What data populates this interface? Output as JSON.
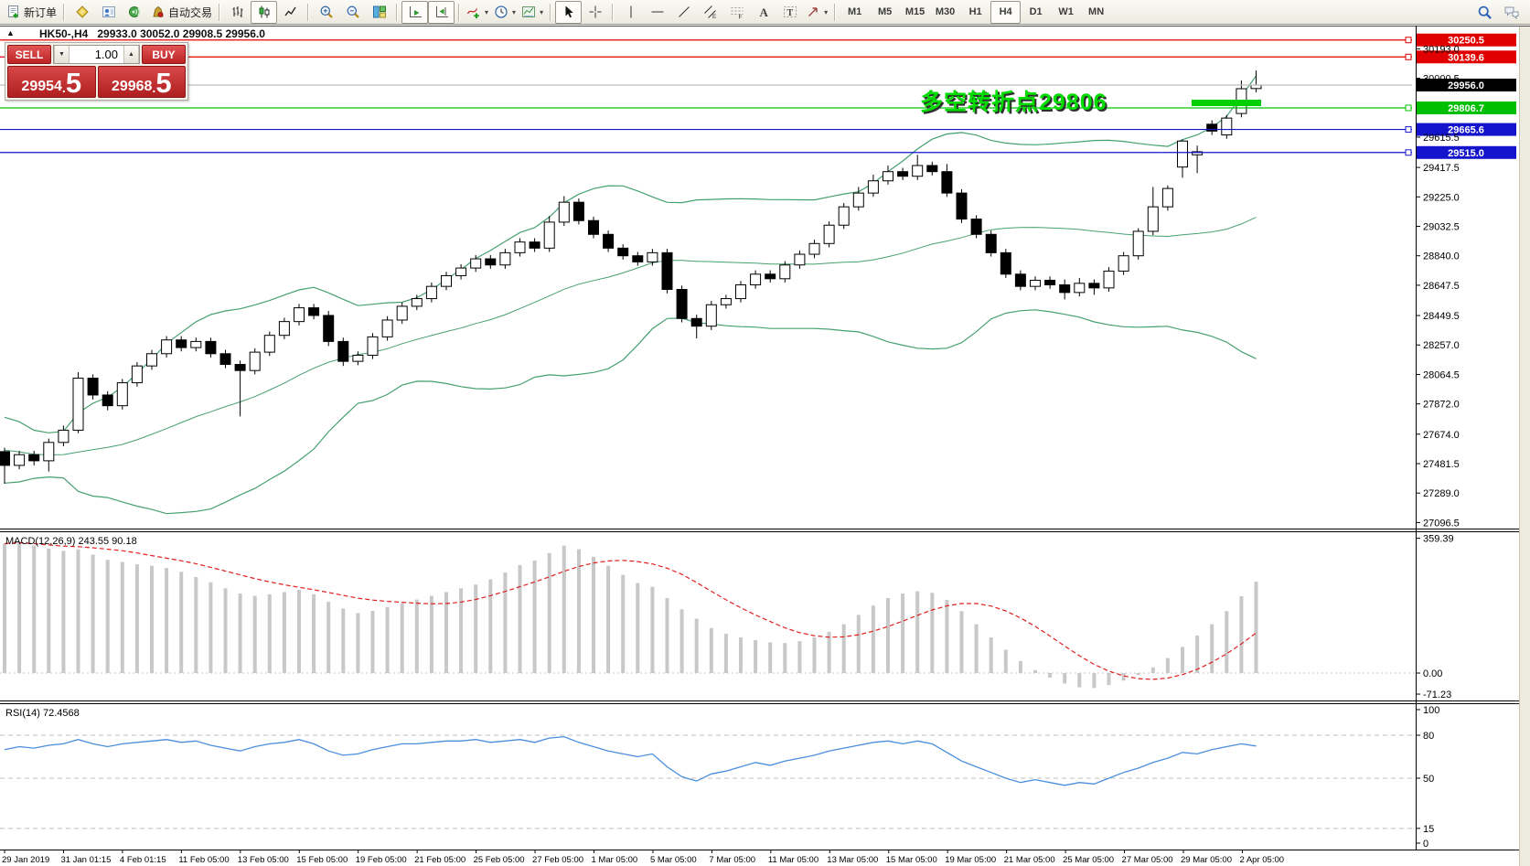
{
  "toolbar": {
    "new_order_label": "新订单",
    "auto_trading_label": "自动交易",
    "timeframes": [
      "M1",
      "M5",
      "M15",
      "M30",
      "H1",
      "H4",
      "D1",
      "W1",
      "MN"
    ],
    "active_timeframe": "H4",
    "icons": {
      "new-order-icon": "document with green plus",
      "profiles-icon": "yellow gem",
      "market-watch-icon": "window with blue person",
      "news-icon": "green orb with waves",
      "auto-trading-icon": "gold pouch with red dot",
      "ohlc-bars-icon": "bar chart",
      "candlestick-icon": "candlesticks (selected)",
      "line-chart-icon": "zigzag line",
      "zoom-in-icon": "magnifier plus",
      "zoom-out-icon": "magnifier minus",
      "tile-windows-icon": "colored tiles",
      "auto-scroll-icon": "axis with green play",
      "chart-shift-icon": "axis with green arrow and bar",
      "indicators-icon": "curve with green plus",
      "periods-icon": "clock",
      "templates-icon": "mini colored chart",
      "cursor-icon": "pointer arrow (selected)",
      "crosshair-icon": "crosshair",
      "vertical-line-icon": "vertical line",
      "horizontal-line-icon": "horizontal line",
      "trendline-icon": "diagonal line",
      "channel-icon": "equidistant channel E",
      "fibonacci-icon": "dashed levels F",
      "text-icon": "letter A",
      "text-label-icon": "boxed T",
      "arrows-icon": "arrow object",
      "search-icon": "blue magnifier",
      "chat-icon": "speech bubbles"
    }
  },
  "chart": {
    "symbol_period": "HK50-,H4",
    "ohlc_text": "29933.0 30052.0 29908.5 29956.0",
    "collapse_glyph": "▲"
  },
  "trade_panel": {
    "sell_label": "SELL",
    "buy_label": "BUY",
    "volume": "1.00",
    "decimal_separator": ".",
    "sell_price_main": "29954",
    "sell_price_pips": "5",
    "buy_price_main": "29968",
    "buy_price_pips": "5",
    "spinner_down": "▼",
    "spinner_up": "▲"
  },
  "annotation": {
    "text": "多空转折点29806",
    "color": "#00dc00"
  },
  "chart_data": {
    "type": "candlestick",
    "symbol": "HK50-",
    "period": "H4",
    "current_bar": {
      "open": 29933.0,
      "high": 30052.0,
      "low": 29908.5,
      "close": 29956.0
    },
    "x_labels": [
      "29 Jan 2019",
      "31 Jan 01:15",
      "4 Feb 01:15",
      "11 Feb 05:00",
      "13 Feb 05:00",
      "15 Feb 05:00",
      "19 Feb 05:00",
      "21 Feb 05:00",
      "25 Feb 05:00",
      "27 Feb 05:00",
      "1 Mar 05:00",
      "5 Mar 05:00",
      "7 Mar 05:00",
      "11 Mar 05:00",
      "13 Mar 05:00",
      "15 Mar 05:00",
      "19 Mar 05:00",
      "21 Mar 05:00",
      "25 Mar 05:00",
      "27 Mar 05:00",
      "29 Mar 05:00",
      "2 Apr 05:00"
    ],
    "price_axis_ticks": [
      "30193.0",
      "30000.5",
      "29615.5",
      "29417.5",
      "29225.0",
      "29032.5",
      "28840.0",
      "28647.5",
      "28449.5",
      "28257.0",
      "28064.5",
      "27872.0",
      "27674.0",
      "27481.5",
      "27289.0",
      "27096.5"
    ],
    "price_lines": [
      {
        "label": "30250.5",
        "price": 30250.5,
        "color": "#e00000",
        "badge": "#e00000",
        "anchor": true
      },
      {
        "label": "30139.6",
        "price": 30139.6,
        "color": "#e00000",
        "badge": "#e00000",
        "anchor": true
      },
      {
        "label": "29956.0",
        "price": 29956.0,
        "color": "#bdbdbd",
        "badge": "#000000",
        "anchor": false
      },
      {
        "label": "29806.7",
        "price": 29806.7,
        "color": "#00c400",
        "badge": "#00bf00",
        "anchor": true
      },
      {
        "label": "29665.6",
        "price": 29665.6,
        "color": "#1414cc",
        "badge": "#1414cc",
        "anchor": true
      },
      {
        "label": "29515.0",
        "price": 29515.0,
        "color": "#1414cc",
        "badge": "#1414cc",
        "anchor": true
      }
    ],
    "candles": [
      [
        27560,
        27585,
        27350,
        27470
      ],
      [
        27470,
        27565,
        27445,
        27540
      ],
      [
        27540,
        27565,
        27470,
        27500
      ],
      [
        27500,
        27645,
        27430,
        27620
      ],
      [
        27620,
        27730,
        27595,
        27700
      ],
      [
        27700,
        28080,
        27680,
        28040
      ],
      [
        28040,
        28065,
        27900,
        27930
      ],
      [
        27930,
        27955,
        27830,
        27860
      ],
      [
        27860,
        28035,
        27835,
        28010
      ],
      [
        28010,
        28145,
        27985,
        28120
      ],
      [
        28120,
        28225,
        28095,
        28200
      ],
      [
        28200,
        28315,
        28175,
        28290
      ],
      [
        28290,
        28315,
        28215,
        28240
      ],
      [
        28240,
        28305,
        28215,
        28280
      ],
      [
        28280,
        28305,
        28175,
        28200
      ],
      [
        28200,
        28225,
        28105,
        28130
      ],
      [
        28130,
        28155,
        27790,
        28090
      ],
      [
        28090,
        28235,
        28065,
        28210
      ],
      [
        28210,
        28345,
        28185,
        28320
      ],
      [
        28320,
        28435,
        28295,
        28410
      ],
      [
        28410,
        28525,
        28385,
        28500
      ],
      [
        28500,
        28525,
        28425,
        28450
      ],
      [
        28450,
        28480,
        28250,
        28280
      ],
      [
        28280,
        28305,
        28120,
        28150
      ],
      [
        28150,
        28215,
        28125,
        28190
      ],
      [
        28190,
        28335,
        28165,
        28310
      ],
      [
        28310,
        28445,
        28285,
        28420
      ],
      [
        28420,
        28535,
        28395,
        28510
      ],
      [
        28510,
        28585,
        28485,
        28560
      ],
      [
        28560,
        28665,
        28535,
        28640
      ],
      [
        28640,
        28735,
        28615,
        28710
      ],
      [
        28710,
        28785,
        28685,
        28760
      ],
      [
        28760,
        28845,
        28735,
        28820
      ],
      [
        28820,
        28845,
        28755,
        28780
      ],
      [
        28780,
        28885,
        28755,
        28860
      ],
      [
        28860,
        28955,
        28835,
        28930
      ],
      [
        28930,
        28955,
        28865,
        28890
      ],
      [
        28890,
        29100,
        28865,
        29060
      ],
      [
        29060,
        29230,
        29035,
        29190
      ],
      [
        29190,
        29215,
        29045,
        29070
      ],
      [
        29070,
        29095,
        28955,
        28980
      ],
      [
        28980,
        29005,
        28865,
        28890
      ],
      [
        28890,
        28915,
        28815,
        28840
      ],
      [
        28840,
        28865,
        28775,
        28800
      ],
      [
        28800,
        28885,
        28775,
        28860
      ],
      [
        28860,
        28885,
        28595,
        28620
      ],
      [
        28620,
        28645,
        28405,
        28430
      ],
      [
        28430,
        28455,
        28300,
        28380
      ],
      [
        28380,
        28545,
        28355,
        28520
      ],
      [
        28520,
        28585,
        28495,
        28560
      ],
      [
        28560,
        28675,
        28535,
        28650
      ],
      [
        28650,
        28745,
        28625,
        28720
      ],
      [
        28720,
        28745,
        28665,
        28690
      ],
      [
        28690,
        28805,
        28665,
        28780
      ],
      [
        28780,
        28875,
        28755,
        28850
      ],
      [
        28850,
        28945,
        28825,
        28920
      ],
      [
        28920,
        29065,
        28895,
        29040
      ],
      [
        29040,
        29185,
        29015,
        29160
      ],
      [
        29160,
        29290,
        29135,
        29250
      ],
      [
        29250,
        29370,
        29225,
        29330
      ],
      [
        29330,
        29430,
        29305,
        29390
      ],
      [
        29390,
        29415,
        29335,
        29360
      ],
      [
        29360,
        29500,
        29335,
        29430
      ],
      [
        29430,
        29455,
        29365,
        29390
      ],
      [
        29390,
        29440,
        29225,
        29250
      ],
      [
        29250,
        29275,
        29055,
        29080
      ],
      [
        29080,
        29105,
        28955,
        28980
      ],
      [
        28980,
        29005,
        28835,
        28860
      ],
      [
        28860,
        28885,
        28695,
        28720
      ],
      [
        28720,
        28745,
        28615,
        28640
      ],
      [
        28640,
        28705,
        28615,
        28680
      ],
      [
        28680,
        28705,
        28625,
        28650
      ],
      [
        28650,
        28685,
        28555,
        28600
      ],
      [
        28600,
        28695,
        28575,
        28660
      ],
      [
        28660,
        28685,
        28585,
        28630
      ],
      [
        28630,
        28765,
        28605,
        28740
      ],
      [
        28740,
        28865,
        28715,
        28840
      ],
      [
        28840,
        29020,
        28815,
        29000
      ],
      [
        29000,
        29290,
        28975,
        29160
      ],
      [
        29160,
        29300,
        29135,
        29280
      ],
      [
        29420,
        29600,
        29350,
        29590
      ],
      [
        29500,
        29560,
        29380,
        29520
      ],
      [
        29700,
        29725,
        29630,
        29655
      ],
      [
        29630,
        29760,
        29605,
        29740
      ],
      [
        29770,
        29986,
        29745,
        29932
      ],
      [
        29933,
        30052,
        29908.5,
        29956
      ]
    ],
    "bollinger": {
      "period": 20,
      "deviation": 2,
      "color": "#46a070",
      "prehistory": [
        27800,
        27760,
        27820,
        27700,
        27660,
        27720,
        27610,
        27560,
        27620,
        27510,
        27480,
        27550,
        27460,
        27500,
        27560,
        27450,
        27480,
        27520,
        27460,
        27500
      ]
    },
    "macd": {
      "label": "MACD(12,26,9)",
      "values_text": "243.55 90.18",
      "axis_ticks": [
        "359.39",
        "0.00",
        "-71.23"
      ],
      "histogram_color": "#c8c8c8",
      "signal_color": "#e02020",
      "histogram": [
        345,
        350,
        340,
        332,
        326,
        330,
        316,
        302,
        296,
        290,
        286,
        280,
        270,
        256,
        242,
        226,
        212,
        206,
        210,
        216,
        222,
        210,
        190,
        172,
        160,
        166,
        176,
        186,
        196,
        206,
        216,
        226,
        236,
        250,
        268,
        288,
        300,
        320,
        340,
        330,
        310,
        286,
        262,
        240,
        230,
        200,
        170,
        145,
        120,
        105,
        95,
        88,
        82,
        80,
        85,
        95,
        110,
        130,
        155,
        180,
        200,
        212,
        218,
        214,
        195,
        165,
        130,
        95,
        62,
        32,
        8,
        -12,
        -28,
        -38,
        -40,
        -32,
        -20,
        -5,
        15,
        40,
        70,
        100,
        130,
        165,
        205,
        243.55
      ]
    },
    "rsi": {
      "label": "RSI(14)",
      "value_text": "72.4568",
      "line_color": "#4b8ede",
      "levels": [
        80,
        50,
        15
      ],
      "axis_ticks": [
        "100",
        "80",
        "50",
        "15",
        "0"
      ],
      "values": [
        70,
        72,
        71,
        73,
        74,
        77,
        74,
        72,
        74,
        75,
        76,
        77,
        75,
        76,
        73,
        71,
        69,
        72,
        74,
        75,
        77,
        74,
        69,
        66,
        67,
        70,
        72,
        74,
        74,
        75,
        76,
        76,
        77,
        75,
        76,
        77,
        75,
        78,
        79,
        75,
        72,
        69,
        67,
        65,
        67,
        58,
        51,
        48,
        53,
        55,
        58,
        61,
        59,
        62,
        64,
        66,
        69,
        71,
        73,
        75,
        76,
        74,
        76,
        74,
        68,
        62,
        58,
        54,
        50,
        47,
        49,
        47,
        45,
        47,
        46,
        50,
        54,
        57,
        61,
        64,
        68,
        67,
        70,
        72,
        74,
        72.46
      ]
    }
  }
}
